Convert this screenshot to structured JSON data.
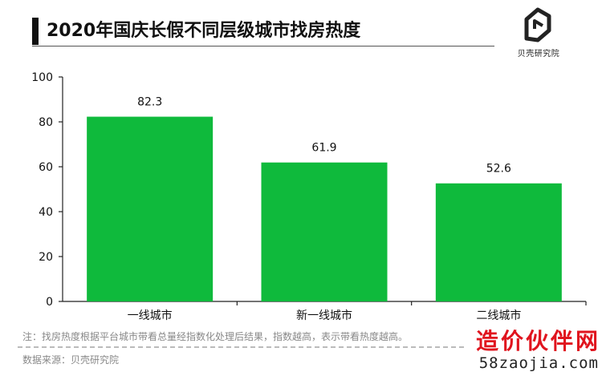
{
  "header": {
    "title": "2020年国庆长假不同层级城市找房热度"
  },
  "logo": {
    "icon": "beike-logo-icon",
    "text": "贝壳研究院"
  },
  "chart_data": {
    "type": "bar",
    "categories": [
      "一线城市",
      "新一线城市",
      "二线城市"
    ],
    "values": [
      82.3,
      61.9,
      52.6
    ],
    "data_labels": [
      "82.3",
      "61.9",
      "52.6"
    ],
    "ylim": [
      0,
      100
    ],
    "yticks": [
      0,
      20,
      40,
      60,
      80,
      100
    ],
    "bar_color": "#0fba3c",
    "grid": false,
    "legend": "none",
    "title": "2020年国庆长假不同层级城市找房热度",
    "xlabel": "",
    "ylabel": ""
  },
  "footer": {
    "note": "注：找房热度根据平台城市带看总量经指数化处理后结果，指数越高，表示带看热度越高。",
    "source": "数据来源：贝壳研究院"
  },
  "watermark": {
    "main": "造价伙伴网",
    "sub": "58zaojia.com"
  }
}
